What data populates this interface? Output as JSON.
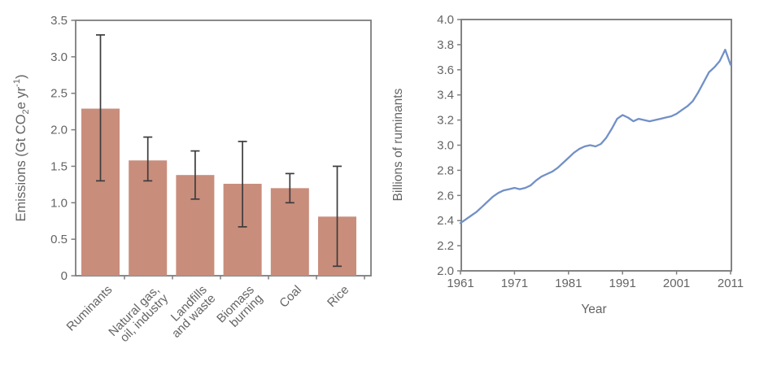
{
  "figure": {
    "background": "#ffffff"
  },
  "colors": {
    "axis": "#7d7d7d",
    "text": "#646464",
    "bar": "#c98d7c",
    "error": "#3c3c3c",
    "line": "#7290c7"
  },
  "chart_data": [
    {
      "type": "bar",
      "title": "",
      "ylabel_plain": "Emissions (Gt CO2e yr-1)",
      "ylabel_segments": [
        {
          "text": "Emissions (Gt CO"
        },
        {
          "text": "2",
          "script": "sub"
        },
        {
          "text": "e yr"
        },
        {
          "text": "-1",
          "script": "sup"
        },
        {
          "text": ")"
        }
      ],
      "categories": [
        [
          "Ruminants"
        ],
        [
          "Natural gas,",
          "oil, industry"
        ],
        [
          "Landfills",
          "and waste"
        ],
        [
          "Biomass",
          "burning"
        ],
        [
          "Coal"
        ],
        [
          "Rice"
        ]
      ],
      "values": [
        2.29,
        1.58,
        1.38,
        1.26,
        1.2,
        0.81
      ],
      "error_low": [
        1.3,
        1.3,
        1.05,
        0.67,
        1.0,
        0.13
      ],
      "error_high": [
        3.3,
        1.9,
        1.71,
        1.84,
        1.4,
        1.5
      ],
      "ylim": [
        0,
        3.5
      ],
      "ytick_step": 0.5,
      "ytick_labels": [
        "0",
        "0.5",
        "1.0",
        "1.5",
        "2.0",
        "2.5",
        "3.0",
        "3.5"
      ],
      "grid": false,
      "legend": "none",
      "bar_color": "#c98d7c",
      "error_color": "#3c3c3c"
    },
    {
      "type": "line",
      "title": "",
      "xlabel": "Year",
      "ylabel": "Billions of ruminants",
      "x": [
        1961,
        1962,
        1963,
        1964,
        1965,
        1966,
        1967,
        1968,
        1969,
        1970,
        1971,
        1972,
        1973,
        1974,
        1975,
        1976,
        1977,
        1978,
        1979,
        1980,
        1981,
        1982,
        1983,
        1984,
        1985,
        1986,
        1987,
        1988,
        1989,
        1990,
        1991,
        1992,
        1993,
        1994,
        1995,
        1996,
        1997,
        1998,
        1999,
        2000,
        2001,
        2002,
        2003,
        2004,
        2005,
        2006,
        2007,
        2008,
        2009,
        2010,
        2011
      ],
      "values": [
        2.38,
        2.41,
        2.44,
        2.47,
        2.51,
        2.55,
        2.59,
        2.62,
        2.64,
        2.65,
        2.66,
        2.65,
        2.66,
        2.68,
        2.72,
        2.75,
        2.77,
        2.79,
        2.82,
        2.86,
        2.9,
        2.94,
        2.97,
        2.99,
        3.0,
        2.99,
        3.01,
        3.06,
        3.13,
        3.21,
        3.24,
        3.22,
        3.19,
        3.21,
        3.2,
        3.19,
        3.2,
        3.21,
        3.22,
        3.23,
        3.25,
        3.28,
        3.31,
        3.35,
        3.42,
        3.5,
        3.58,
        3.62,
        3.67,
        3.76,
        3.64
      ],
      "ylim": [
        2.0,
        4.0
      ],
      "ytick_step": 0.2,
      "ytick_labels": [
        "2.0",
        "2.2",
        "2.4",
        "2.6",
        "2.8",
        "3.0",
        "3.2",
        "3.4",
        "3.6",
        "3.8",
        "4.0"
      ],
      "xticks": [
        1961,
        1971,
        1981,
        1991,
        2001,
        2011
      ],
      "grid": false,
      "legend": "none",
      "line_color": "#7290c7"
    }
  ]
}
